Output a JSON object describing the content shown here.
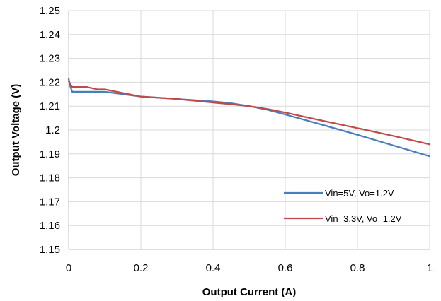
{
  "chart_data": {
    "type": "line",
    "title": "",
    "xlabel": "Output Current (A)",
    "ylabel": "Output Voltage (V)",
    "xlim": [
      0,
      1
    ],
    "ylim": [
      1.15,
      1.25
    ],
    "x_ticks": [
      "0",
      "0.2",
      "0.4",
      "0.6",
      "0.8",
      "1"
    ],
    "y_ticks": [
      "1.15",
      "1.16",
      "1.17",
      "1.18",
      "1.19",
      "1.2",
      "1.21",
      "1.22",
      "1.23",
      "1.24",
      "1.25"
    ],
    "grid": true,
    "legend_position": "bottom-right",
    "series": [
      {
        "name": "Vin=5V, Vo=1.2V",
        "color": "#4a7ebb",
        "x": [
          0,
          0.005,
          0.01,
          0.02,
          0.05,
          0.1,
          0.15,
          0.2,
          0.3,
          0.4,
          0.45,
          0.5,
          0.55,
          0.6,
          0.7,
          0.8,
          0.9,
          1.0
        ],
        "y": [
          1.2215,
          1.218,
          1.216,
          1.216,
          1.216,
          1.216,
          1.215,
          1.214,
          1.213,
          1.212,
          1.2112,
          1.21,
          1.2085,
          1.2065,
          1.2023,
          1.198,
          1.1935,
          1.189
        ]
      },
      {
        "name": "Vin=3.3V, Vo=1.2V",
        "color": "#be4b48",
        "x": [
          0,
          0.005,
          0.01,
          0.02,
          0.05,
          0.08,
          0.1,
          0.15,
          0.2,
          0.3,
          0.4,
          0.45,
          0.5,
          0.55,
          0.6,
          0.7,
          0.8,
          0.9,
          1.0
        ],
        "y": [
          1.2205,
          1.219,
          1.218,
          1.218,
          1.218,
          1.217,
          1.217,
          1.2155,
          1.214,
          1.213,
          1.2115,
          1.2108,
          1.21,
          1.2088,
          1.2073,
          1.204,
          1.2008,
          1.1975,
          1.194
        ]
      }
    ]
  }
}
